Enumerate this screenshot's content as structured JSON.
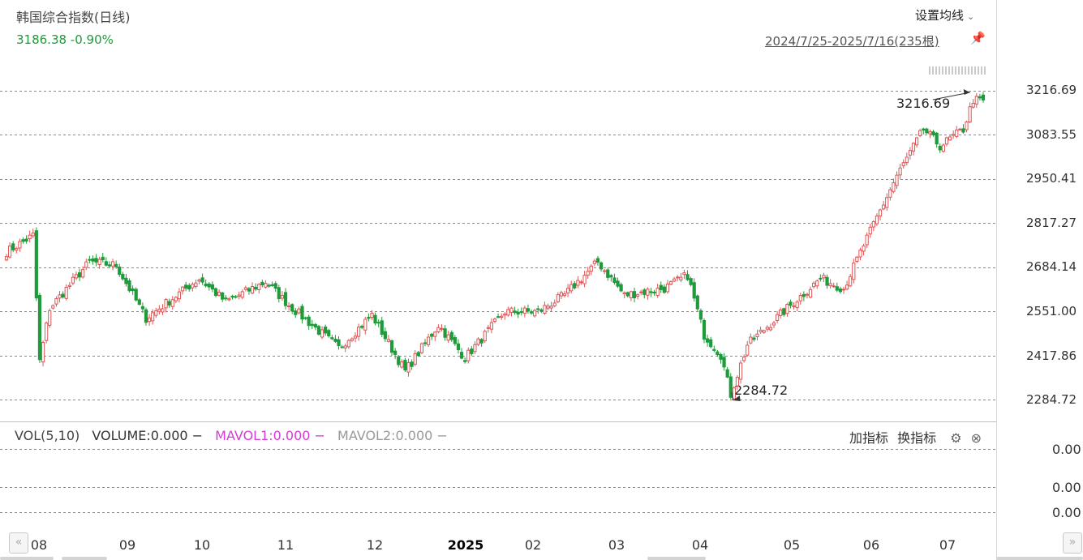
{
  "header": {
    "title": "韩国综合指数(日线)",
    "quote": "3186.38 -0.90%",
    "ma_setting_label": "设置均线",
    "range_label": "2024/7/25-2025/7/16(235根)"
  },
  "colors": {
    "up": "#e05555",
    "down": "#1e9b3b",
    "grid": "#8a8a8a"
  },
  "icons": {
    "ma_setting": "chevron-down-icon",
    "range": "pin-icon",
    "gear": "gear-icon",
    "close": "close-icon"
  },
  "chart_data": {
    "type": "candlestick",
    "y_ticks": [
      "3216.69",
      "3083.55",
      "2950.41",
      "2817.27",
      "2684.14",
      "2551.00",
      "2417.86",
      "2284.72"
    ],
    "ylim": [
      2284.72,
      3216.69
    ],
    "x_ticks": [
      "08",
      "09",
      "10",
      "11",
      "12",
      "2025",
      "02",
      "03",
      "04",
      "05",
      "06",
      "07"
    ],
    "annotations": {
      "max_label": "3216.69",
      "min_label": "2284.72"
    },
    "series_profile": [
      [
        0,
        2730
      ],
      [
        8,
        2780
      ],
      [
        10,
        2400
      ],
      [
        13,
        2560
      ],
      [
        25,
        2700
      ],
      [
        33,
        2690
      ],
      [
        42,
        2530
      ],
      [
        58,
        2650
      ],
      [
        66,
        2580
      ],
      [
        78,
        2640
      ],
      [
        85,
        2570
      ],
      [
        100,
        2440
      ],
      [
        110,
        2540
      ],
      [
        120,
        2370
      ],
      [
        130,
        2510
      ],
      [
        138,
        2410
      ],
      [
        150,
        2550
      ],
      [
        160,
        2550
      ],
      [
        168,
        2600
      ],
      [
        178,
        2700
      ],
      [
        186,
        2600
      ],
      [
        198,
        2620
      ],
      [
        205,
        2660
      ],
      [
        210,
        2480
      ],
      [
        215,
        2420
      ],
      [
        218,
        2300
      ],
      [
        223,
        2450
      ],
      [
        235,
        2560
      ],
      [
        245,
        2650
      ],
      [
        252,
        2620
      ],
      [
        258,
        2750
      ],
      [
        268,
        2960
      ],
      [
        276,
        3100
      ],
      [
        281,
        3050
      ],
      [
        288,
        3100
      ],
      [
        291,
        3190
      ],
      [
        294,
        3185
      ]
    ]
  },
  "volume": {
    "legend": {
      "vol": "VOL(5,10)",
      "volume": "VOLUME:0.000",
      "mavol1": "MAVOL1:0.000",
      "mavol2": "MAVOL2:0.000",
      "dash1": "−",
      "dash2": "−",
      "dash3": "−"
    },
    "add_indicator": "加指标",
    "switch_indicator": "换指标",
    "y_ticks": [
      "0.00",
      "0.00",
      "0.00"
    ]
  },
  "nav": {
    "prev": "«",
    "next": "»"
  }
}
